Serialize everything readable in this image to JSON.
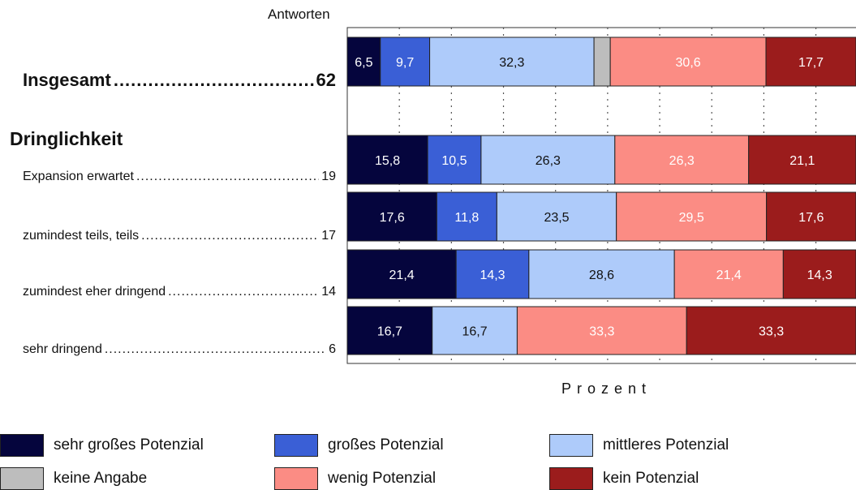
{
  "chart_data": {
    "type": "bar",
    "orientation": "horizontal",
    "stacked": true,
    "title": "Antworten",
    "xlabel": "Prozent",
    "xlim": [
      0,
      100
    ],
    "grid": true,
    "section_title": "Dringlichkeit",
    "overall": {
      "label": "Insgesamt",
      "n": "62"
    },
    "categories": [
      {
        "label": "Insgesamt",
        "n": "62"
      },
      {
        "label": "Expansion erwartet",
        "n": "19"
      },
      {
        "label": "zumindest teils, teils",
        "n": "17"
      },
      {
        "label": "zumindest eher dringend",
        "n": "14"
      },
      {
        "label": "sehr dringend",
        "n": "6"
      }
    ],
    "series": [
      {
        "name": "sehr großes Potenzial",
        "color": "#05053d",
        "values": [
          6.5,
          15.8,
          17.6,
          21.4,
          16.7
        ],
        "labels": [
          "6,5",
          "15,8",
          "17,6",
          "21,4",
          "16,7"
        ]
      },
      {
        "name": "großes Potenzial",
        "color": "#3a5fd6",
        "values": [
          9.7,
          10.5,
          11.8,
          14.3,
          0
        ],
        "labels": [
          "9,7",
          "10,5",
          "11,8",
          "14,3",
          ""
        ]
      },
      {
        "name": "mittleres Potenzial",
        "color": "#aecbfa",
        "values": [
          32.3,
          26.3,
          23.5,
          28.6,
          16.7
        ],
        "labels": [
          "32,3",
          "26,3",
          "23,5",
          "28,6",
          "16,7"
        ]
      },
      {
        "name": "keine Angabe",
        "color": "#bdbdbd",
        "values": [
          3.2,
          0,
          0,
          0,
          0
        ],
        "labels": [
          "",
          "",
          "",
          "",
          ""
        ]
      },
      {
        "name": "wenig Potenzial",
        "color": "#fb8c84",
        "values": [
          30.6,
          26.3,
          29.5,
          21.4,
          33.3
        ],
        "labels": [
          "30,6",
          "26,3",
          "29,5",
          "21,4",
          "33,3"
        ]
      },
      {
        "name": "kein Potenzial",
        "color": "#9b1c1c",
        "values": [
          17.7,
          21.1,
          17.6,
          14.3,
          33.3
        ],
        "labels": [
          "17,7",
          "21,1",
          "17,6",
          "14,3",
          "33,3"
        ]
      }
    ],
    "legend": [
      "sehr großes Potenzial",
      "großes Potenzial",
      "mittleres Potenzial",
      "keine Angabe",
      "wenig Potenzial",
      "kein Potenzial"
    ]
  }
}
